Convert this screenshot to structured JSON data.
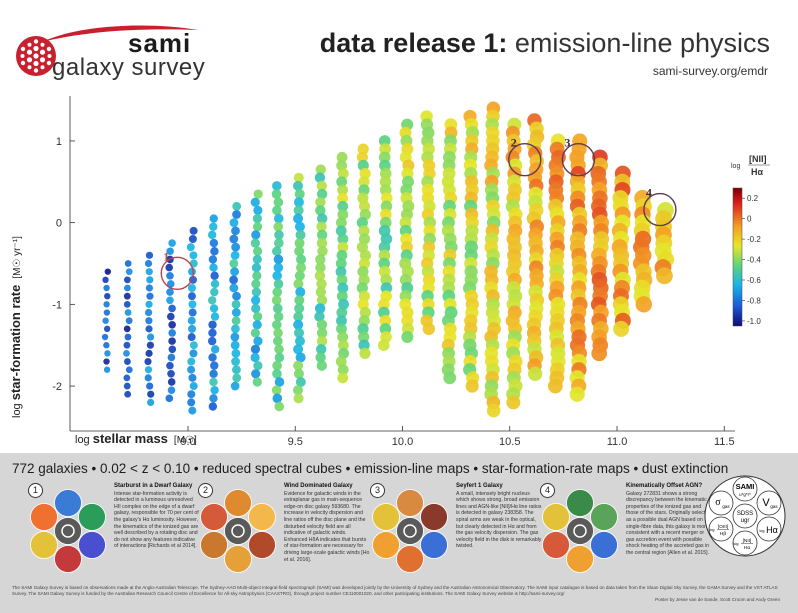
{
  "logo": {
    "brand": "sami",
    "survey": "galaxy survey"
  },
  "header": {
    "title_bold": "data release 1:",
    "title_rest": " emission-line physics",
    "url": "sami-survey.org/emdr"
  },
  "chart_data": {
    "type": "scatter",
    "xlabel_prefix": "log ",
    "xlabel_main": "stellar mass",
    "xlabel_unit": "[M☉]",
    "ylabel_prefix": "log ",
    "ylabel_main": "star-formation rate",
    "ylabel_unit": "[M☉ yr⁻¹]",
    "xlim": [
      8.45,
      11.55
    ],
    "ylim": [
      -2.55,
      1.55
    ],
    "xticks": [
      9.0,
      9.5,
      10.0,
      10.5,
      11.0,
      11.5
    ],
    "xtick_labels": [
      "9.0",
      "9.5",
      "10.0",
      "10.5",
      "11.0",
      "11.5"
    ],
    "yticks": [
      1,
      0,
      -1,
      -2
    ],
    "ytick_labels": [
      "1",
      "0",
      "-1",
      "-2"
    ],
    "colorbar": {
      "label_prefix": "log ",
      "label_num": "[NII]",
      "label_den": "Hα",
      "range": [
        -1.05,
        0.3
      ],
      "ticks": [
        0.2,
        0.0,
        -0.2,
        -0.4,
        -0.6,
        -0.8,
        -1.0
      ],
      "tick_labels": [
        "0.2",
        "0",
        "-0.2",
        "-0.4",
        "-0.6",
        "-0.8",
        "-1.0"
      ]
    },
    "highlights": [
      {
        "label": "1",
        "x": 8.95,
        "y": -0.62
      },
      {
        "label": "2",
        "x": 10.57,
        "y": 0.77
      },
      {
        "label": "3",
        "x": 10.82,
        "y": 0.77
      },
      {
        "label": "4",
        "x": 11.2,
        "y": 0.16
      }
    ],
    "groups": [
      {
        "mass": 8.62,
        "value": -0.85,
        "sfr_min": -1.8,
        "sfr_max": -0.6
      },
      {
        "mass": 8.72,
        "value": -0.85,
        "sfr_min": -2.1,
        "sfr_max": -0.5
      },
      {
        "mass": 8.82,
        "value": -0.8,
        "sfr_min": -2.2,
        "sfr_max": -0.4
      },
      {
        "mass": 8.92,
        "value": -0.8,
        "sfr_min": -2.1,
        "sfr_max": -0.25
      },
      {
        "mass": 9.02,
        "value": -0.75,
        "sfr_min": -2.3,
        "sfr_max": -0.1
      },
      {
        "mass": 9.12,
        "value": -0.7,
        "sfr_min": -2.2,
        "sfr_max": 0.05
      },
      {
        "mass": 9.22,
        "value": -0.65,
        "sfr_min": -2.0,
        "sfr_max": 0.2
      },
      {
        "mass": 9.32,
        "value": -0.6,
        "sfr_min": -1.9,
        "sfr_max": 0.35
      },
      {
        "mass": 9.42,
        "value": -0.55,
        "sfr_min": -2.2,
        "sfr_max": 0.45
      },
      {
        "mass": 9.52,
        "value": -0.5,
        "sfr_min": -2.1,
        "sfr_max": 0.55
      },
      {
        "mass": 9.62,
        "value": -0.45,
        "sfr_min": -1.7,
        "sfr_max": 0.65
      },
      {
        "mass": 9.72,
        "value": -0.42,
        "sfr_min": -1.9,
        "sfr_max": 0.8
      },
      {
        "mass": 9.82,
        "value": -0.4,
        "sfr_min": -1.6,
        "sfr_max": 0.9
      },
      {
        "mass": 9.92,
        "value": -0.38,
        "sfr_min": -1.5,
        "sfr_max": 1.0
      },
      {
        "mass": 10.02,
        "value": -0.35,
        "sfr_min": -1.4,
        "sfr_max": 1.2
      },
      {
        "mass": 10.12,
        "value": -0.3,
        "sfr_min": -1.3,
        "sfr_max": 1.3
      },
      {
        "mass": 10.22,
        "value": -0.3,
        "sfr_min": -1.9,
        "sfr_max": 1.2
      },
      {
        "mass": 10.32,
        "value": -0.28,
        "sfr_min": -2.0,
        "sfr_max": 1.3
      },
      {
        "mass": 10.42,
        "value": -0.25,
        "sfr_min": -2.3,
        "sfr_max": 1.4
      },
      {
        "mass": 10.52,
        "value": -0.2,
        "sfr_min": -2.2,
        "sfr_max": 1.2
      },
      {
        "mass": 10.62,
        "value": -0.15,
        "sfr_min": -1.9,
        "sfr_max": 1.25
      },
      {
        "mass": 10.72,
        "value": -0.15,
        "sfr_min": -2.0,
        "sfr_max": 1.0
      },
      {
        "mass": 10.82,
        "value": -0.1,
        "sfr_min": -2.1,
        "sfr_max": 1.0
      },
      {
        "mass": 10.92,
        "value": -0.05,
        "sfr_min": -1.6,
        "sfr_max": 0.8
      },
      {
        "mass": 11.02,
        "value": -0.1,
        "sfr_min": -1.3,
        "sfr_max": 0.6
      },
      {
        "mass": 11.12,
        "value": -0.1,
        "sfr_min": -1.0,
        "sfr_max": 0.3
      },
      {
        "mass": 11.22,
        "value": -0.15,
        "sfr_min": -0.6,
        "sfr_max": 0.15
      }
    ]
  },
  "stats": "772 galaxies  •  0.02 < z < 0.10  •  reduced spectral cubes  •  emission-line maps  •  star-formation-rate maps  •  dust extinction",
  "panels": [
    {
      "num": "1",
      "title": "Starburst in a Dwarf Galaxy",
      "text": "Intense star-formation activity is detected in a luminous unresolved HII complex on the edge of a dwarf galaxy, responsible for 70 per cent of the galaxy's Hα luminosity. However, the kinematics of the ionized gas are well described by a rotating disc and do not show any features indicative of interactions [Richards et al 2014]."
    },
    {
      "num": "2",
      "title": "Wind Dominated Galaxy",
      "text": "Evidence for galactic winds in the extraplanar gas in main-sequence edge-on disc galaxy 593680. The increase in velocity dispersion and line ratios off the disc plane and the disturbed velocity field are all indicative of galactic winds. Enhanced HδA indicates that bursts of star-formation are necessary for driving large-scale galactic winds [Ho et al. 2016]."
    },
    {
      "num": "3",
      "title": "Seyfert 1 Galaxy",
      "text": "A small, intensely bright nucleus which shows strong, broad emission lines and AGN-like [NII]/Hα line ratios is detected in galaxy 238358. The spiral arms are weak in the optical, but clearly detected in Hα and from the gas velocity dispersion. The gas velocity field in the disk is remarkably twisted."
    },
    {
      "num": "4",
      "title": "Kinematically Offset AGN?",
      "text": "Galaxy 272831 shows a strong discrepancy between the kinematic properties of the ionized gas and those of the stars. Originally selected as a possible dual AGN based on single-fibre data, this galaxy is more consistent with a recent merger or gas accretion event with possible shock heating of the accreted gas in the central region [Allen et al. 2015]."
    }
  ],
  "legend_hex": {
    "top": "SAMI",
    "top_sub": "u*g*r*",
    "left": "σ",
    "left_sub": "gas",
    "right": "V",
    "right_sub": "gas",
    "center1": "SDSS",
    "center2": "ugr",
    "bl_num": "[OIII]",
    "bl_den": "Hβ",
    "bl_prefix": "log",
    "br": "Hα",
    "br_prefix": "log",
    "bottom_num": "[NII]",
    "bottom_den": "Hα",
    "bottom_prefix": "log"
  },
  "footer": "The SAMI Galaxy Survey is based on observations made at the Anglo-Australian Telescope. The Sydney-AAO Multi-object Integral-field spectrograph (SAMI) was developed jointly by the University of Sydney and the Australian Astronomical Observatory. The SAMI input catalogue is based on data taken from the Sloan Digital Sky Survey, the GAMA Survey and the VST ATLAS Survey. The SAMI Galaxy Survey is funded by the Australian Research Council Centre of Excellence for All-sky Astrophysics (CAASTRO), through project number CE110001020, and other participating institutions. The SAMI Galaxy Survey website is http://sami-survey.org/",
  "credit": "Poster by Jesse van de Sande, Scott Croom and Andy Green"
}
